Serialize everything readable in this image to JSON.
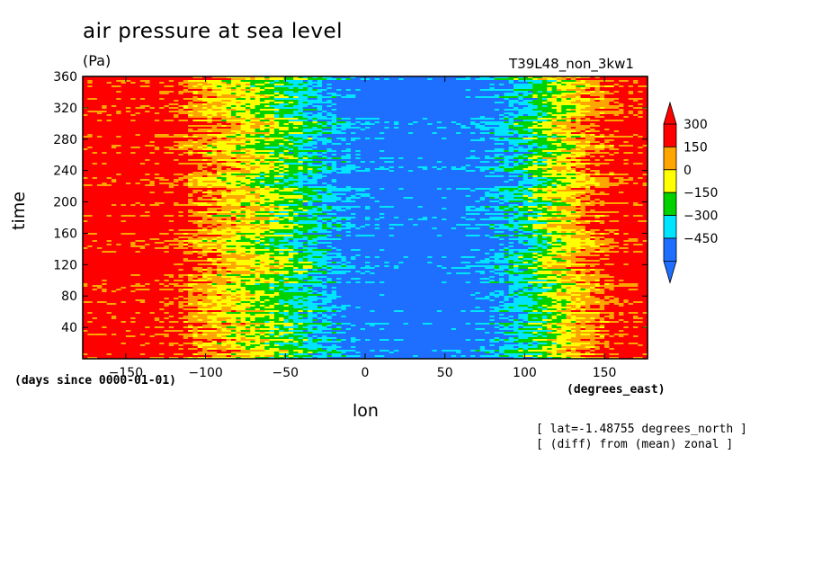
{
  "header": {
    "title": "air pressure at sea level",
    "units": "(Pa)",
    "experiment": "T39L48_non_3kw1"
  },
  "notes": {
    "line1": "[ lat=-1.48755 degrees_north ]",
    "line2": "[ (diff) from (mean) zonal ]"
  },
  "chart_data": {
    "type": "heatmap",
    "title": "air pressure at sea level",
    "xlabel": "lon",
    "xunits": "(degrees_east)",
    "ylabel": "time",
    "yunits": "(days since 0000-01-01)",
    "xlim": [
      -177,
      177
    ],
    "ylim": [
      0,
      360
    ],
    "xticks": [
      -150,
      -100,
      -50,
      0,
      50,
      100,
      150
    ],
    "yticks": [
      40,
      80,
      120,
      160,
      200,
      240,
      280,
      320,
      360
    ],
    "colorbar": {
      "levels": [
        -450,
        -300,
        -150,
        0,
        150,
        300
      ],
      "labels": [
        "300",
        "150",
        "0",
        "−150",
        "−300",
        "−450"
      ],
      "colors": [
        "#1e6eff",
        "#00e5ff",
        "#00d200",
        "#ffff00",
        "#ffa500",
        "#ff0000"
      ],
      "under_color": "#1e6eff",
      "over_color": "#ff0000"
    },
    "zonal_profile": {
      "lon": [
        -177,
        -150,
        -120,
        -100,
        -80,
        -60,
        -40,
        -20,
        0,
        20,
        40,
        60,
        80,
        100,
        120,
        140,
        160,
        177
      ],
      "value": [
        450,
        450,
        400,
        230,
        120,
        10,
        -130,
        -300,
        -420,
        -470,
        -480,
        -440,
        -330,
        -170,
        50,
        250,
        400,
        450
      ]
    }
  }
}
